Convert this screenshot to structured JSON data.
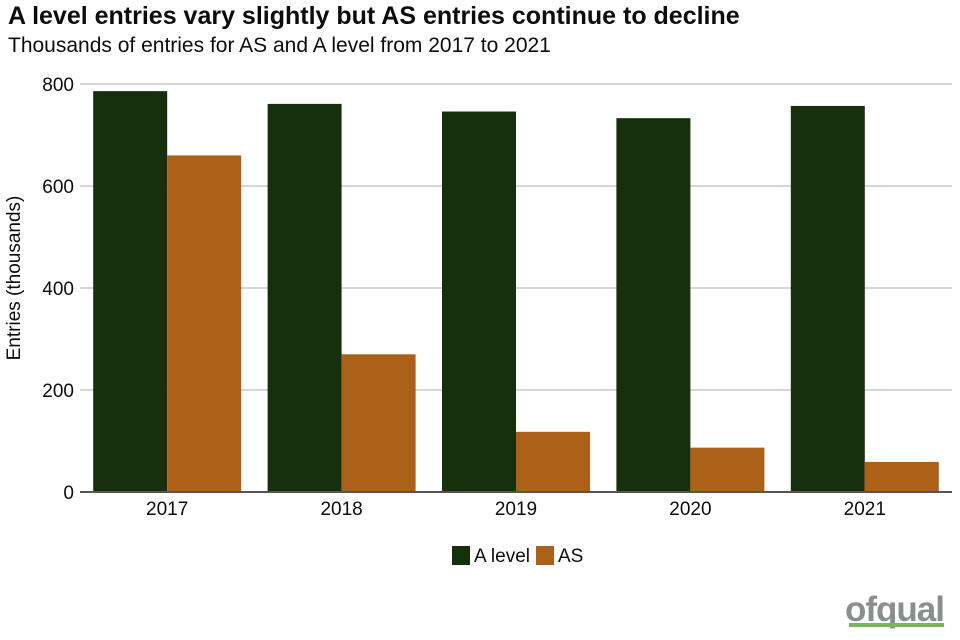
{
  "header": {
    "title": "A level entries vary slightly but AS entries continue to decline",
    "subtitle": "Thousands of entries for AS and A level from 2017 to 2021"
  },
  "logo": {
    "text": "ofqual"
  },
  "chart_data": {
    "type": "bar",
    "categories": [
      "2017",
      "2018",
      "2019",
      "2020",
      "2021"
    ],
    "series": [
      {
        "name": "A level",
        "color": "#16300c",
        "values": [
          786,
          761,
          746,
          733,
          757
        ]
      },
      {
        "name": "AS",
        "color": "#ad6118",
        "values": [
          660,
          270,
          118,
          87,
          59
        ]
      }
    ],
    "ylabel": "Entries (thousands)",
    "xlabel": "",
    "ylim": [
      0,
      800
    ],
    "yticks": [
      0,
      200,
      400,
      600,
      800
    ],
    "grid": true,
    "legend": "bottom-center"
  }
}
